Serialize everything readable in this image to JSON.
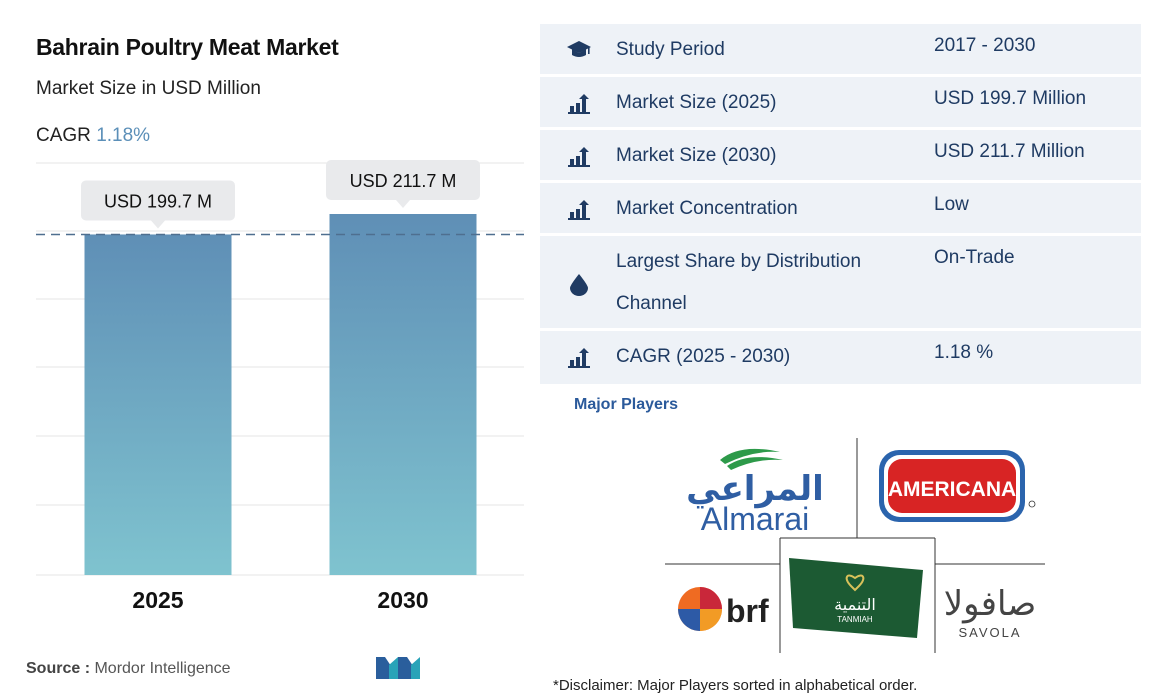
{
  "header": {
    "title": "Bahrain Poultry Meat Market",
    "subtitle": "Market Size in USD Million",
    "cagr_label": "CAGR",
    "cagr_value": "1.18%"
  },
  "chart_data": {
    "type": "bar",
    "categories": [
      "2025",
      "2030"
    ],
    "values": [
      199.7,
      211.7
    ],
    "data_labels": [
      "USD 199.7 M",
      "USD 211.7 M"
    ],
    "ylim": [
      0,
      211.7
    ],
    "grid": true,
    "reference_line": 199.7,
    "colors": {
      "bar_top": "#5f8fb6",
      "bar_bottom": "#7fc3cf",
      "gridline": "#e4e4e4",
      "callout": "#e9eaec"
    }
  },
  "source": {
    "label": "Source :",
    "text": "Mordor Intelligence"
  },
  "table": {
    "rows": [
      {
        "icon": "graduation-cap-icon",
        "label": "Study Period",
        "value": "2017 - 2030"
      },
      {
        "icon": "bar-chart-icon",
        "label": "Market Size (2025)",
        "value": "USD 199.7 Million"
      },
      {
        "icon": "bar-chart-icon",
        "label": "Market Size (2030)",
        "value": "USD 211.7 Million"
      },
      {
        "icon": "bar-chart-icon",
        "label": "Market Concentration",
        "value": "Low"
      },
      {
        "icon": "drop-icon",
        "label_line1": "Largest Share by Distribution",
        "label_line2": "Channel",
        "value": "On-Trade"
      },
      {
        "icon": "bar-chart-icon",
        "label": "CAGR (2025 - 2030)",
        "value": "1.18 %"
      }
    ]
  },
  "players": {
    "heading": "Major Players",
    "logos": {
      "almarai_arabic": "المراعي",
      "almarai": "Almarai",
      "americana": "AMERICANA",
      "brf": "brf",
      "tanmiah_arabic": "التنمية",
      "tanmiah": "TANMIAH",
      "savola_arabic": "صافولا",
      "savola": "SAVOLA"
    }
  },
  "disclaimer": "*Disclaimer: Major Players sorted in alphabetical order."
}
